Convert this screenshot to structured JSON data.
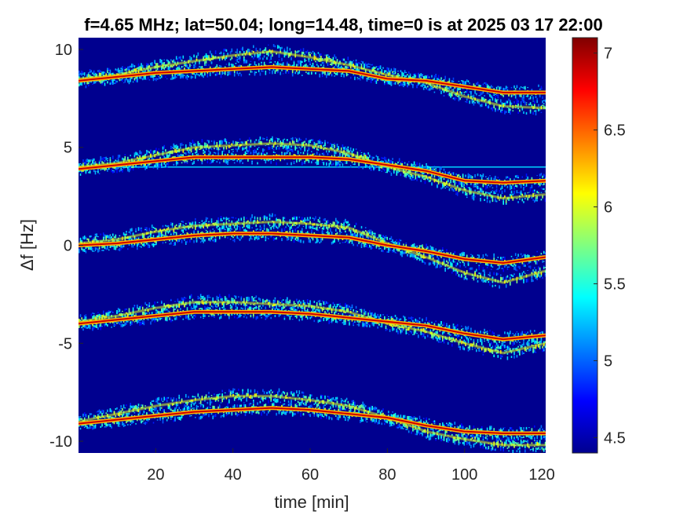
{
  "chart_data": {
    "type": "heatmap",
    "title": "f=4.65 MHz;  lat=50.04; long=14.48, time=0 is at 2025 03 17 22:00",
    "xlabel": "time [min]",
    "ylabel": "Δf [Hz]",
    "xlim": [
      0,
      121
    ],
    "ylim": [
      -10.6,
      10.6
    ],
    "x_ticks": [
      20,
      40,
      60,
      80,
      100,
      120
    ],
    "y_ticks": [
      -10,
      -5,
      0,
      5,
      10
    ],
    "x_tick_labels": [
      "20",
      "40",
      "60",
      "80",
      "100",
      "120"
    ],
    "y_tick_labels": [
      "-10",
      "-5",
      "0",
      "5",
      "10"
    ],
    "colorbar": {
      "colormap": "jet",
      "range": [
        4.4,
        7.1
      ],
      "ticks": [
        4.5,
        5,
        5.5,
        6,
        6.5,
        7
      ],
      "tick_labels": [
        "4.5",
        "5",
        "5.5",
        "6",
        "6.5",
        "7"
      ]
    },
    "background_value": 4.4,
    "reference_line": {
      "y": 4.0,
      "x_start": 0,
      "x_end": 121,
      "value": 5.3
    },
    "traces": [
      {
        "offset": 10,
        "time": [
          0,
          10,
          20,
          30,
          40,
          50,
          60,
          70,
          80,
          90,
          100,
          110,
          121
        ],
        "main": [
          8.4,
          8.6,
          8.8,
          8.9,
          9.0,
          9.1,
          9.0,
          8.9,
          8.5,
          8.4,
          8.1,
          7.8,
          7.8
        ],
        "secondary": [
          8.5,
          8.7,
          9.1,
          9.4,
          9.7,
          9.9,
          9.6,
          9.2,
          8.7,
          8.3,
          7.6,
          7.1,
          7.0
        ]
      },
      {
        "offset": 5,
        "time": [
          0,
          10,
          20,
          30,
          40,
          50,
          60,
          70,
          80,
          90,
          100,
          110,
          121
        ],
        "main": [
          3.9,
          4.1,
          4.3,
          4.5,
          4.5,
          4.5,
          4.5,
          4.4,
          4.1,
          3.8,
          3.3,
          3.2,
          3.3
        ],
        "secondary": [
          4.0,
          4.2,
          4.6,
          5.0,
          5.1,
          5.2,
          5.1,
          4.7,
          4.0,
          3.5,
          2.8,
          2.4,
          2.6
        ]
      },
      {
        "offset": 0,
        "time": [
          0,
          10,
          20,
          30,
          40,
          50,
          60,
          70,
          80,
          90,
          100,
          110,
          121
        ],
        "main": [
          0.0,
          0.1,
          0.3,
          0.5,
          0.6,
          0.6,
          0.5,
          0.4,
          0.0,
          -0.3,
          -0.7,
          -0.9,
          -0.6
        ],
        "secondary": [
          0.1,
          0.3,
          0.7,
          1.0,
          1.1,
          1.2,
          1.1,
          0.9,
          0.1,
          -0.6,
          -1.4,
          -1.9,
          -1.3
        ]
      },
      {
        "offset": -5,
        "time": [
          0,
          10,
          20,
          30,
          40,
          50,
          60,
          70,
          80,
          90,
          100,
          110,
          121
        ],
        "main": [
          -4.0,
          -3.8,
          -3.6,
          -3.4,
          -3.4,
          -3.4,
          -3.5,
          -3.7,
          -3.9,
          -4.1,
          -4.5,
          -4.8,
          -4.6
        ],
        "secondary": [
          -3.9,
          -3.6,
          -3.2,
          -2.9,
          -2.9,
          -3.0,
          -3.1,
          -3.4,
          -4.0,
          -4.4,
          -5.0,
          -5.5,
          -5.0
        ]
      },
      {
        "offset": -10,
        "time": [
          0,
          10,
          20,
          30,
          40,
          50,
          60,
          70,
          80,
          90,
          100,
          110,
          121
        ],
        "main": [
          -9.1,
          -8.9,
          -8.7,
          -8.5,
          -8.4,
          -8.3,
          -8.4,
          -8.6,
          -8.8,
          -9.2,
          -9.5,
          -9.6,
          -9.6
        ],
        "secondary": [
          -9.0,
          -8.6,
          -8.2,
          -7.9,
          -7.7,
          -7.7,
          -7.9,
          -8.2,
          -8.8,
          -9.5,
          -9.9,
          -10.2,
          -10.2
        ]
      }
    ],
    "grid": false,
    "legend": "none"
  }
}
